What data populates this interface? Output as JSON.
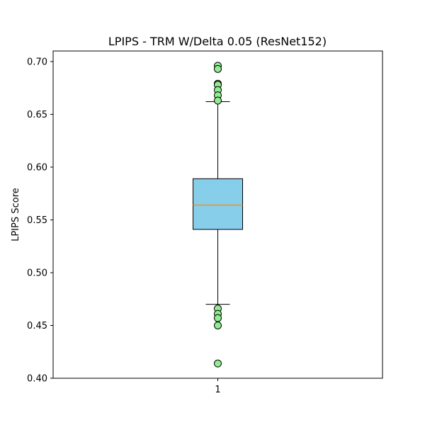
{
  "chart_data": {
    "type": "boxplot",
    "title": "LPIPS - TRM W/Delta 0.05 (ResNet152)",
    "xlabel": "",
    "ylabel": "LPIPS Score",
    "ylim": [
      0.4,
      0.71
    ],
    "yticks": [
      "0.40",
      "0.45",
      "0.50",
      "0.55",
      "0.60",
      "0.65",
      "0.70"
    ],
    "xticks": [
      "1"
    ],
    "grid": false,
    "boxes": [
      {
        "category": "1",
        "whisker_low": 0.47,
        "q1": 0.541,
        "median": 0.564,
        "q3": 0.589,
        "whisker_high": 0.662,
        "outliers": [
          0.696,
          0.693,
          0.679,
          0.678,
          0.673,
          0.668,
          0.663,
          0.466,
          0.461,
          0.457,
          0.45,
          0.414
        ]
      }
    ],
    "colors": {
      "box_fill": "#87ceeb",
      "median": "#ff8c00",
      "outlier_fill": "#90ee90",
      "line": "#000000"
    }
  }
}
